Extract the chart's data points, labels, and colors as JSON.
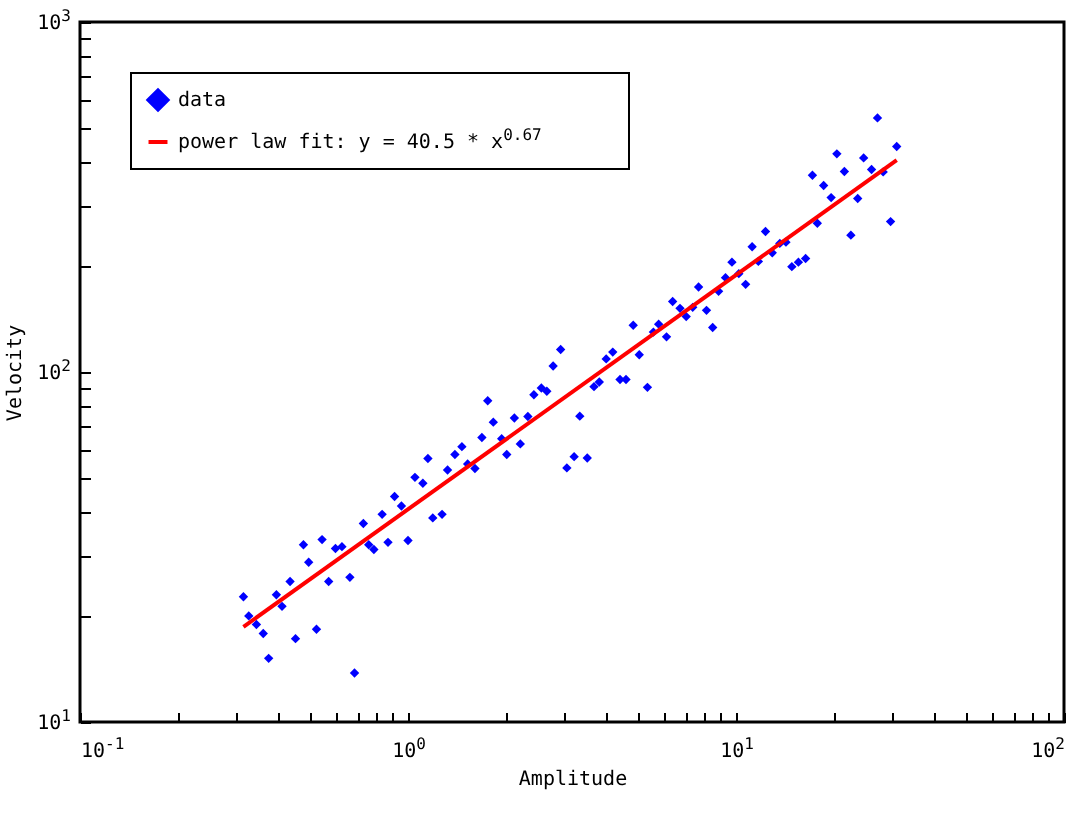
{
  "chart_data": {
    "type": "scatter",
    "xlabel": "Amplitude",
    "ylabel": "Velocity",
    "log": "xy",
    "grid": false,
    "legend": "top left",
    "xlim": [
      0.1,
      100
    ],
    "ylim": [
      10,
      1000
    ],
    "xticks": [
      {
        "value": 0.1,
        "label": "10$^{-1}$"
      },
      {
        "value": 0.2,
        "label": null
      },
      {
        "value": 0.3,
        "label": null
      },
      {
        "value": 0.4,
        "label": null
      },
      {
        "value": 0.5,
        "label": null
      },
      {
        "value": 0.6,
        "label": null
      },
      {
        "value": 0.7,
        "label": null
      },
      {
        "value": 0.8,
        "label": null
      },
      {
        "value": 0.9,
        "label": null
      },
      {
        "value": 1,
        "label": "10$^{0}$"
      },
      {
        "value": 2,
        "label": null
      },
      {
        "value": 3,
        "label": null
      },
      {
        "value": 4,
        "label": null
      },
      {
        "value": 5,
        "label": null
      },
      {
        "value": 6,
        "label": null
      },
      {
        "value": 7,
        "label": null
      },
      {
        "value": 8,
        "label": null
      },
      {
        "value": 9,
        "label": null
      },
      {
        "value": 10,
        "label": "10$^{1}$"
      },
      {
        "value": 20,
        "label": null
      },
      {
        "value": 30,
        "label": null
      },
      {
        "value": 40,
        "label": null
      },
      {
        "value": 50,
        "label": null
      },
      {
        "value": 60,
        "label": null
      },
      {
        "value": 70,
        "label": null
      },
      {
        "value": 80,
        "label": null
      },
      {
        "value": 90,
        "label": null
      },
      {
        "value": 100,
        "label": "10$^{2}$"
      }
    ],
    "yticks": [
      {
        "value": 10,
        "label": "10$^{1}$"
      },
      {
        "value": 20,
        "label": null
      },
      {
        "value": 30,
        "label": null
      },
      {
        "value": 40,
        "label": null
      },
      {
        "value": 50,
        "label": null
      },
      {
        "value": 60,
        "label": null
      },
      {
        "value": 70,
        "label": null
      },
      {
        "value": 80,
        "label": null
      },
      {
        "value": 90,
        "label": null
      },
      {
        "value": 100,
        "label": "10$^{2}$"
      },
      {
        "value": 200,
        "label": null
      },
      {
        "value": 300,
        "label": null
      },
      {
        "value": 400,
        "label": null
      },
      {
        "value": 500,
        "label": null
      },
      {
        "value": 600,
        "label": null
      },
      {
        "value": 700,
        "label": null
      },
      {
        "value": 800,
        "label": null
      },
      {
        "value": 900,
        "label": null
      },
      {
        "value": 1000,
        "label": "10$^{3}$"
      }
    ],
    "series": [
      {
        "name": "data",
        "color": "#0000ff",
        "marker": "diamond",
        "x": [
          0.315,
          0.327,
          0.345,
          0.362,
          0.376,
          0.397,
          0.413,
          0.437,
          0.454,
          0.48,
          0.498,
          0.526,
          0.547,
          0.573,
          0.601,
          0.629,
          0.665,
          0.687,
          0.731,
          0.759,
          0.787,
          0.834,
          0.869,
          0.91,
          0.955,
          1.0,
          1.05,
          1.11,
          1.15,
          1.19,
          1.27,
          1.32,
          1.39,
          1.46,
          1.52,
          1.6,
          1.68,
          1.75,
          1.82,
          1.93,
          2.0,
          2.11,
          2.2,
          2.32,
          2.42,
          2.55,
          2.65,
          2.77,
          2.92,
          3.05,
          3.21,
          3.34,
          3.52,
          3.69,
          3.83,
          4.02,
          4.21,
          4.43,
          4.62,
          4.86,
          5.07,
          5.37,
          5.6,
          5.81,
          6.14,
          6.41,
          6.75,
          7.05,
          7.38,
          7.69,
          8.13,
          8.49,
          8.85,
          9.29,
          9.72,
          10.2,
          10.7,
          11.2,
          11.7,
          12.3,
          12.9,
          13.6,
          14.2,
          14.8,
          15.5,
          16.3,
          17.1,
          17.7,
          18.5,
          19.5,
          20.3,
          21.4,
          22.4,
          23.5,
          24.5,
          25.9,
          27.0,
          28.1,
          29.6,
          30.9
        ],
        "values": [
          22.8,
          20.1,
          19.0,
          17.9,
          15.2,
          23.1,
          21.4,
          25.2,
          17.3,
          32.1,
          28.6,
          18.4,
          33.2,
          25.2,
          31.3,
          31.7,
          25.9,
          13.8,
          36.9,
          32.1,
          31.1,
          39.2,
          32.6,
          44.1,
          41.4,
          33.0,
          50.0,
          48.1,
          56.6,
          38.3,
          39.2,
          52.5,
          58.1,
          61.2,
          54.6,
          53.0,
          65.0,
          82.8,
          71.9,
          64.5,
          58.1,
          73.9,
          62.3,
          74.6,
          86.1,
          90.0,
          88.1,
          104,
          116,
          53.2,
          57.3,
          74.8,
          56.8,
          90.8,
          93.6,
          109,
          114,
          95.2,
          95.2,
          136,
          112,
          90.4,
          130,
          137,
          126,
          159,
          152,
          144,
          153,
          175,
          150,
          134,
          170,
          186,
          206,
          191,
          178,
          228,
          207,
          252,
          219,
          233,
          235,
          200,
          206,
          211,
          365,
          266,
          341,
          315,
          420,
          374,
          246,
          313,
          409,
          379,
          532,
          373,
          269,
          441
        ]
      },
      {
        "name": "power law fit: y = 40.5 * x$^{0.67}$",
        "type": "line",
        "color": "#ff0000",
        "x": [
          0.315,
          30.9
        ],
        "values": [
          18.7,
          403
        ]
      }
    ]
  }
}
